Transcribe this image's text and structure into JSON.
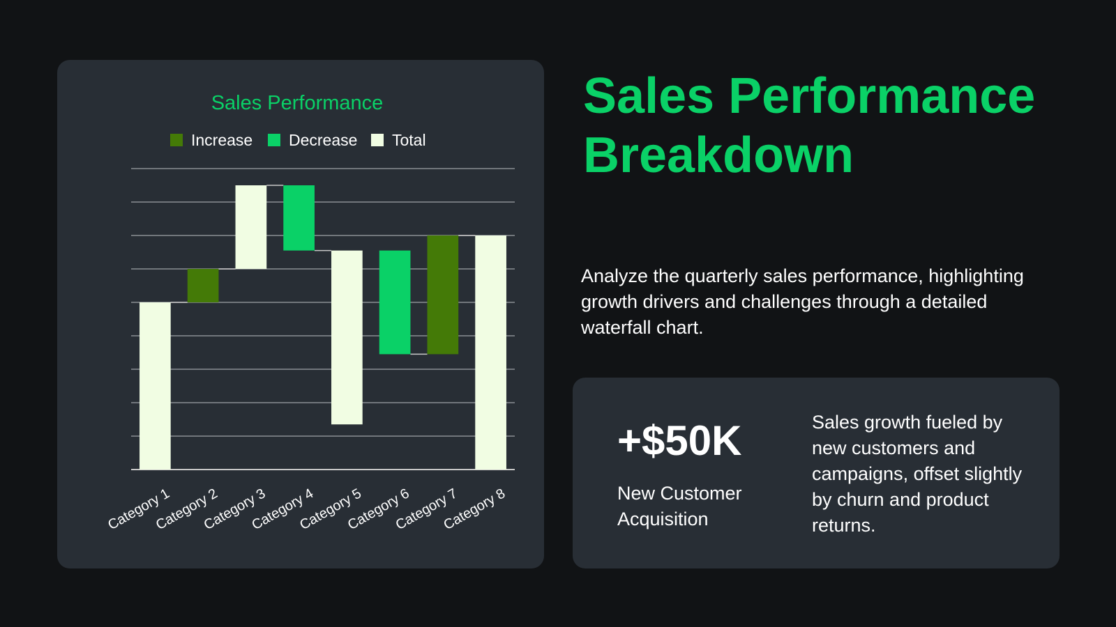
{
  "heading": "Sales Performance Breakdown",
  "description": "Analyze the quarterly sales performance, highlighting growth drivers and challenges through a detailed waterfall chart.",
  "stat": {
    "value": "+$50K",
    "label": "New Customer Acquisition",
    "description": "Sales growth fueled by new customers and campaigns, offset slightly by churn and product returns."
  },
  "colors": {
    "accent": "#0ad167",
    "increase": "#447a07",
    "decrease": "#0ad167",
    "total": "#f1fde3",
    "card": "#282e35",
    "background": "#111315"
  },
  "chart_data": {
    "type": "waterfall",
    "title": "Sales Performance",
    "legend": [
      "Increase",
      "Decrease",
      "Total"
    ],
    "legend_position": "top",
    "grid": true,
    "ylim": [
      0,
      9
    ],
    "categories": [
      "Category 1",
      "Category 2",
      "Category 3",
      "Category 4",
      "Category 5",
      "Category 6",
      "Category 7",
      "Category 8"
    ],
    "bars": [
      {
        "kind": "Total",
        "start": 0,
        "end": 5.0
      },
      {
        "kind": "Increase",
        "start": 5.0,
        "end": 6.0
      },
      {
        "kind": "Total",
        "start": 6.0,
        "end": 8.5
      },
      {
        "kind": "Decrease",
        "start": 8.5,
        "end": 6.55
      },
      {
        "kind": "Total",
        "start": 6.55,
        "end": 1.35
      },
      {
        "kind": "Decrease",
        "start": 6.55,
        "end": 3.45
      },
      {
        "kind": "Increase",
        "start": 3.45,
        "end": 7.0
      },
      {
        "kind": "Total",
        "start": 0,
        "end": 7.0
      }
    ]
  }
}
